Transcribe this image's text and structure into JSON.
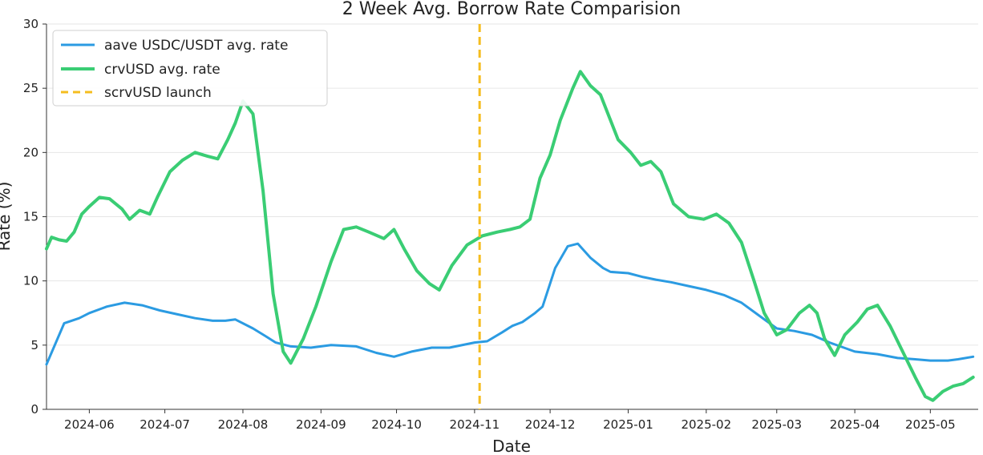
{
  "chart_data": {
    "type": "line",
    "title": "2 Week Avg. Borrow Rate Comparision",
    "xlabel": "Date",
    "ylabel": "Rate (%)",
    "xlim": [
      "2024-05-15",
      "2025-05-20"
    ],
    "ylim": [
      0,
      30
    ],
    "yticks": [
      0,
      5,
      10,
      15,
      20,
      25,
      30
    ],
    "xticks": [
      "2024-06",
      "2024-07",
      "2024-08",
      "2024-09",
      "2024-10",
      "2024-11",
      "2024-12",
      "2025-01",
      "2025-02",
      "2025-03",
      "2025-04",
      "2025-05"
    ],
    "grid": "horizontal",
    "legend_position": "top-left",
    "series": [
      {
        "name": "aave USDC/USDT avg. rate",
        "color": "#2b9be2",
        "points": [
          [
            "2024-05-15",
            3.5
          ],
          [
            "2024-05-22",
            6.7
          ],
          [
            "2024-05-28",
            7.1
          ],
          [
            "2024-06-01",
            7.5
          ],
          [
            "2024-06-08",
            8.0
          ],
          [
            "2024-06-15",
            8.3
          ],
          [
            "2024-06-22",
            8.1
          ],
          [
            "2024-06-29",
            7.7
          ],
          [
            "2024-07-06",
            7.4
          ],
          [
            "2024-07-13",
            7.1
          ],
          [
            "2024-07-20",
            6.9
          ],
          [
            "2024-07-25",
            6.9
          ],
          [
            "2024-07-29",
            7.0
          ],
          [
            "2024-08-05",
            6.3
          ],
          [
            "2024-08-10",
            5.7
          ],
          [
            "2024-08-14",
            5.2
          ],
          [
            "2024-08-20",
            4.9
          ],
          [
            "2024-08-28",
            4.8
          ],
          [
            "2024-09-05",
            5.0
          ],
          [
            "2024-09-15",
            4.9
          ],
          [
            "2024-09-23",
            4.4
          ],
          [
            "2024-09-30",
            4.1
          ],
          [
            "2024-10-07",
            4.5
          ],
          [
            "2024-10-15",
            4.8
          ],
          [
            "2024-10-22",
            4.8
          ],
          [
            "2024-11-01",
            5.2
          ],
          [
            "2024-11-06",
            5.3
          ],
          [
            "2024-11-12",
            6.0
          ],
          [
            "2024-11-16",
            6.5
          ],
          [
            "2024-11-20",
            6.8
          ],
          [
            "2024-11-25",
            7.5
          ],
          [
            "2024-11-28",
            8.0
          ],
          [
            "2024-12-03",
            11.0
          ],
          [
            "2024-12-08",
            12.7
          ],
          [
            "2024-12-12",
            12.9
          ],
          [
            "2024-12-17",
            11.8
          ],
          [
            "2024-12-22",
            11.0
          ],
          [
            "2024-12-25",
            10.7
          ],
          [
            "2025-01-01",
            10.6
          ],
          [
            "2025-01-07",
            10.3
          ],
          [
            "2025-01-12",
            10.1
          ],
          [
            "2025-01-18",
            9.9
          ],
          [
            "2025-01-25",
            9.6
          ],
          [
            "2025-02-01",
            9.3
          ],
          [
            "2025-02-08",
            8.9
          ],
          [
            "2025-02-15",
            8.3
          ],
          [
            "2025-02-22",
            7.3
          ],
          [
            "2025-03-01",
            6.3
          ],
          [
            "2025-03-08",
            6.1
          ],
          [
            "2025-03-15",
            5.8
          ],
          [
            "2025-03-22",
            5.2
          ],
          [
            "2025-04-01",
            4.5
          ],
          [
            "2025-04-10",
            4.3
          ],
          [
            "2025-04-18",
            4.0
          ],
          [
            "2025-04-25",
            3.9
          ],
          [
            "2025-05-01",
            3.8
          ],
          [
            "2025-05-08",
            3.8
          ],
          [
            "2025-05-12",
            3.9
          ],
          [
            "2025-05-18",
            4.1
          ]
        ]
      },
      {
        "name": "crvUSD avg. rate",
        "color": "#3acd74",
        "points": [
          [
            "2024-05-15",
            12.5
          ],
          [
            "2024-05-17",
            13.4
          ],
          [
            "2024-05-20",
            13.2
          ],
          [
            "2024-05-23",
            13.1
          ],
          [
            "2024-05-26",
            13.8
          ],
          [
            "2024-05-29",
            15.2
          ],
          [
            "2024-06-01",
            15.8
          ],
          [
            "2024-06-05",
            16.5
          ],
          [
            "2024-06-09",
            16.4
          ],
          [
            "2024-06-14",
            15.6
          ],
          [
            "2024-06-17",
            14.8
          ],
          [
            "2024-06-21",
            15.5
          ],
          [
            "2024-06-25",
            15.2
          ],
          [
            "2024-06-28",
            16.5
          ],
          [
            "2024-07-03",
            18.5
          ],
          [
            "2024-07-08",
            19.4
          ],
          [
            "2024-07-13",
            20.0
          ],
          [
            "2024-07-18",
            19.7
          ],
          [
            "2024-07-22",
            19.5
          ],
          [
            "2024-07-26",
            21.0
          ],
          [
            "2024-07-29",
            22.3
          ],
          [
            "2024-08-01",
            24.0
          ],
          [
            "2024-08-05",
            23.0
          ],
          [
            "2024-08-09",
            17.0
          ],
          [
            "2024-08-13",
            9.0
          ],
          [
            "2024-08-17",
            4.5
          ],
          [
            "2024-08-20",
            3.6
          ],
          [
            "2024-08-25",
            5.5
          ],
          [
            "2024-08-30",
            8.0
          ],
          [
            "2024-09-05",
            11.5
          ],
          [
            "2024-09-10",
            14.0
          ],
          [
            "2024-09-15",
            14.2
          ],
          [
            "2024-09-20",
            13.8
          ],
          [
            "2024-09-26",
            13.3
          ],
          [
            "2024-09-30",
            14.0
          ],
          [
            "2024-10-04",
            12.5
          ],
          [
            "2024-10-09",
            10.8
          ],
          [
            "2024-10-14",
            9.8
          ],
          [
            "2024-10-18",
            9.3
          ],
          [
            "2024-10-23",
            11.2
          ],
          [
            "2024-10-29",
            12.8
          ],
          [
            "2024-11-04",
            13.5
          ],
          [
            "2024-11-10",
            13.8
          ],
          [
            "2024-11-15",
            14.0
          ],
          [
            "2024-11-19",
            14.2
          ],
          [
            "2024-11-23",
            14.8
          ],
          [
            "2024-11-27",
            18.0
          ],
          [
            "2024-12-01",
            19.8
          ],
          [
            "2024-12-05",
            22.5
          ],
          [
            "2024-12-10",
            25.0
          ],
          [
            "2024-12-13",
            26.3
          ],
          [
            "2024-12-17",
            25.2
          ],
          [
            "2024-12-21",
            24.5
          ],
          [
            "2024-12-24",
            23.0
          ],
          [
            "2024-12-28",
            21.0
          ],
          [
            "2025-01-02",
            20.0
          ],
          [
            "2025-01-06",
            19.0
          ],
          [
            "2025-01-10",
            19.3
          ],
          [
            "2025-01-14",
            18.5
          ],
          [
            "2025-01-19",
            16.0
          ],
          [
            "2025-01-25",
            15.0
          ],
          [
            "2025-01-31",
            14.8
          ],
          [
            "2025-02-05",
            15.2
          ],
          [
            "2025-02-10",
            14.5
          ],
          [
            "2025-02-15",
            13.0
          ],
          [
            "2025-02-20",
            10.0
          ],
          [
            "2025-02-24",
            7.5
          ],
          [
            "2025-03-01",
            5.8
          ],
          [
            "2025-03-05",
            6.2
          ],
          [
            "2025-03-10",
            7.5
          ],
          [
            "2025-03-14",
            8.1
          ],
          [
            "2025-03-17",
            7.5
          ],
          [
            "2025-03-20",
            5.5
          ],
          [
            "2025-03-24",
            4.2
          ],
          [
            "2025-03-28",
            5.8
          ],
          [
            "2025-04-02",
            6.8
          ],
          [
            "2025-04-06",
            7.8
          ],
          [
            "2025-04-10",
            8.1
          ],
          [
            "2025-04-15",
            6.5
          ],
          [
            "2025-04-20",
            4.5
          ],
          [
            "2025-04-25",
            2.5
          ],
          [
            "2025-04-29",
            1.0
          ],
          [
            "2025-05-02",
            0.7
          ],
          [
            "2025-05-06",
            1.4
          ],
          [
            "2025-05-10",
            1.8
          ],
          [
            "2025-05-14",
            2.0
          ],
          [
            "2025-05-18",
            2.5
          ]
        ]
      }
    ],
    "vlines": [
      {
        "name": "scrvUSD launch",
        "x": "2024-11-03",
        "color": "#f5bd1f",
        "style": "dashed"
      }
    ]
  }
}
